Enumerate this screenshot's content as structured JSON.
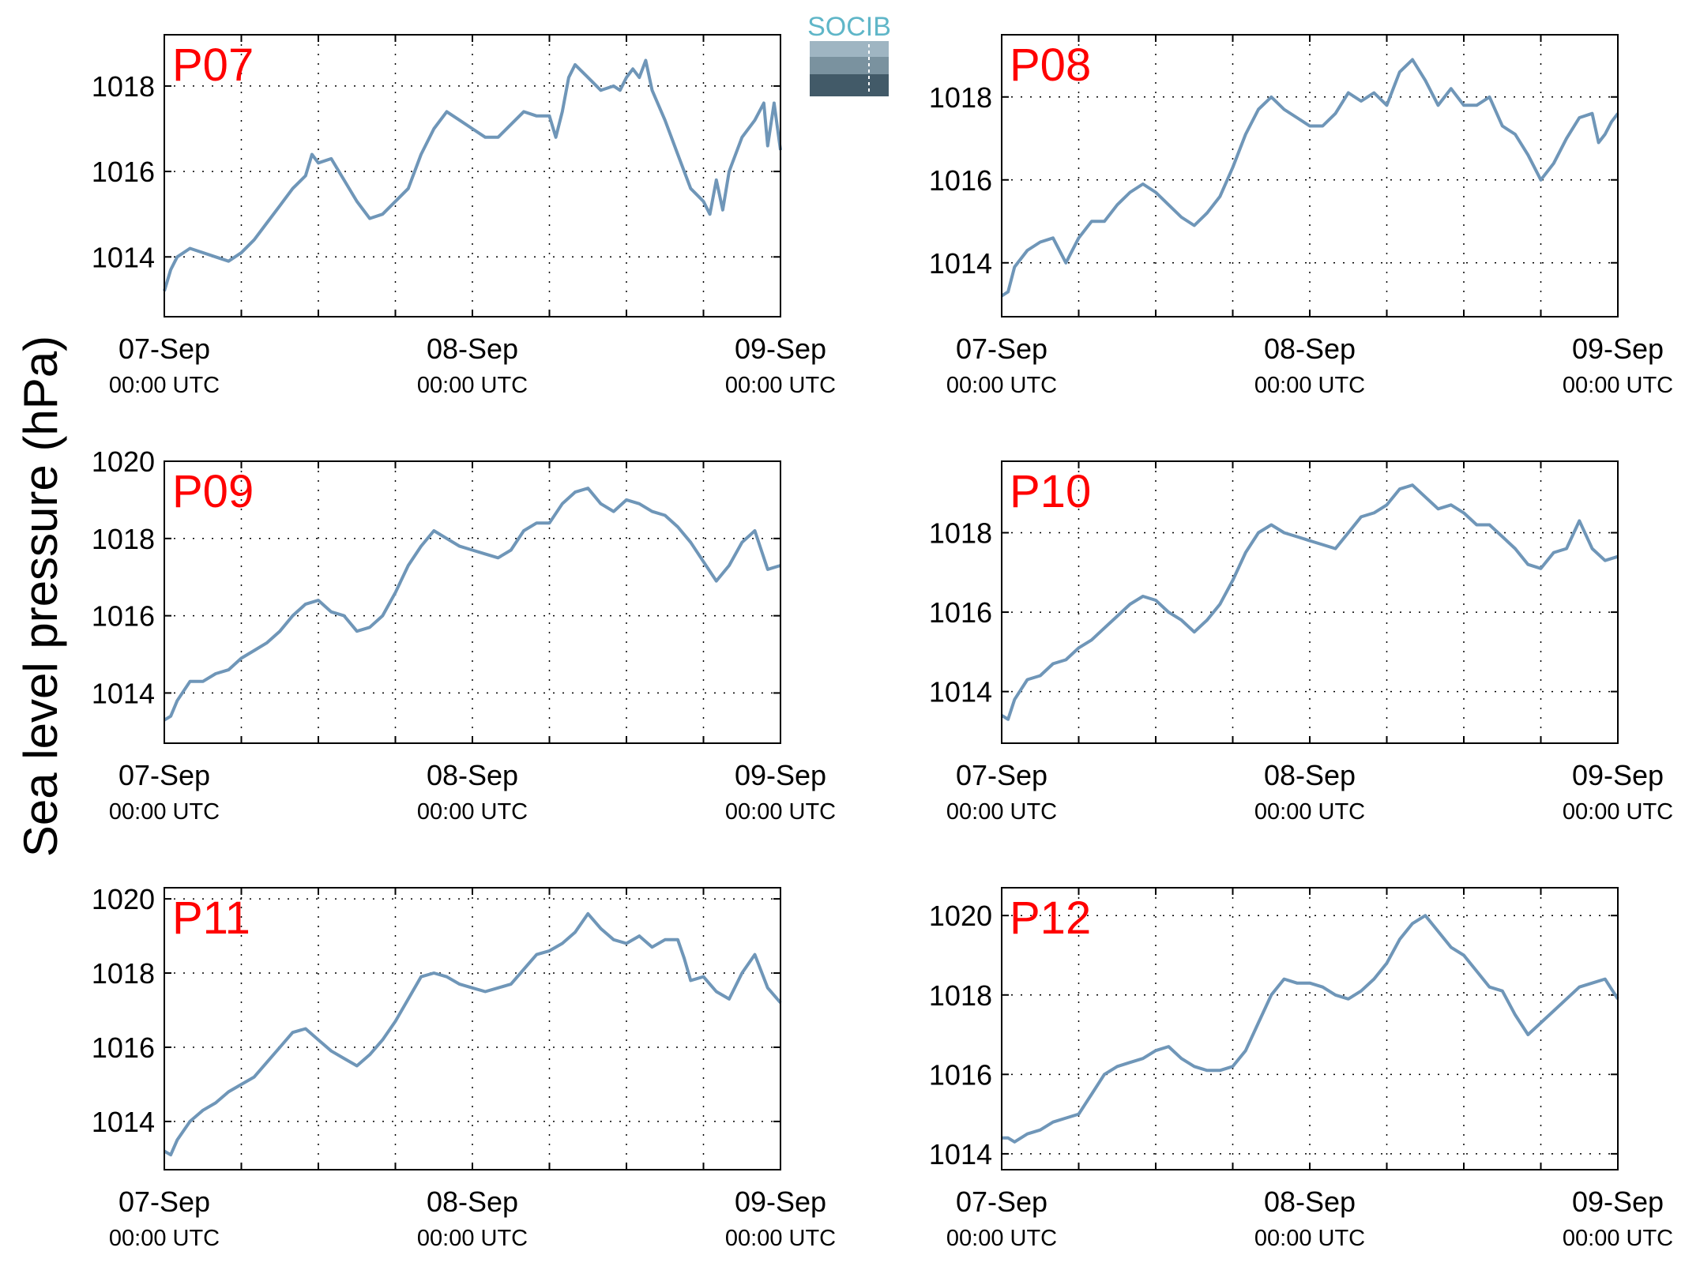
{
  "figure": {
    "ylabel": "Sea level pressure (hPa)",
    "logo_text": "SOCIB",
    "line_color": "#6f96b8",
    "label_color": "#ff0000"
  },
  "chart_data": [
    {
      "type": "line",
      "panel_label": "P07",
      "xlabel": "",
      "ylabel": "Sea level pressure (hPa)",
      "xlim": [
        0,
        48
      ],
      "ylim": [
        1012.6,
        1019.2
      ],
      "yticks": [
        1014,
        1016,
        1018
      ],
      "xticks": [
        0,
        24,
        48
      ],
      "xtick_labels": [
        [
          "07-Sep",
          "00:00 UTC"
        ],
        [
          "08-Sep",
          "00:00 UTC"
        ],
        [
          "09-Sep",
          "00:00 UTC"
        ]
      ],
      "grid": true,
      "series": [
        {
          "x": [
            0,
            0.5,
            1,
            2,
            3,
            4,
            5,
            6,
            7,
            8,
            9,
            10,
            11,
            11.5,
            12,
            13,
            14,
            15,
            16,
            17,
            18,
            19,
            20,
            21,
            22,
            23,
            24,
            25,
            26,
            27,
            28,
            29,
            30,
            30.5,
            31,
            31.5,
            32,
            33,
            34,
            35,
            35.5,
            36,
            36.5,
            37,
            37.5,
            38,
            39,
            40,
            41,
            42,
            42.5,
            43,
            43.5,
            44,
            45,
            46,
            46.7,
            47,
            47.5,
            48
          ],
          "y": [
            1013.2,
            1013.7,
            1014.0,
            1014.2,
            1014.1,
            1014.0,
            1013.9,
            1014.1,
            1014.4,
            1014.8,
            1015.2,
            1015.6,
            1015.9,
            1016.4,
            1016.2,
            1016.3,
            1015.8,
            1015.3,
            1014.9,
            1015.0,
            1015.3,
            1015.6,
            1016.4,
            1017.0,
            1017.4,
            1017.2,
            1017.0,
            1016.8,
            1016.8,
            1017.1,
            1017.4,
            1017.3,
            1017.3,
            1016.8,
            1017.4,
            1018.2,
            1018.5,
            1018.2,
            1017.9,
            1018.0,
            1017.9,
            1018.2,
            1018.4,
            1018.2,
            1018.6,
            1017.9,
            1017.2,
            1016.4,
            1015.6,
            1015.3,
            1015.0,
            1015.8,
            1015.1,
            1016.0,
            1016.8,
            1017.2,
            1017.6,
            1016.6,
            1017.6,
            1016.5
          ]
        }
      ]
    },
    {
      "type": "line",
      "panel_label": "P08",
      "xlabel": "",
      "ylabel": "",
      "xlim": [
        0,
        48
      ],
      "ylim": [
        1012.7,
        1019.5
      ],
      "yticks": [
        1014,
        1016,
        1018
      ],
      "xticks": [
        0,
        24,
        48
      ],
      "xtick_labels": [
        [
          "07-Sep",
          "00:00 UTC"
        ],
        [
          "08-Sep",
          "00:00 UTC"
        ],
        [
          "09-Sep",
          "00:00 UTC"
        ]
      ],
      "grid": true,
      "series": [
        {
          "x": [
            0,
            0.5,
            1,
            2,
            3,
            4,
            5,
            6,
            7,
            8,
            9,
            10,
            11,
            12,
            13,
            14,
            15,
            16,
            17,
            18,
            19,
            20,
            21,
            22,
            23,
            24,
            25,
            26,
            27,
            28,
            29,
            30,
            31,
            32,
            33,
            34,
            35,
            36,
            37,
            38,
            39,
            40,
            41,
            42,
            43,
            44,
            45,
            46,
            46.5,
            47,
            47.5,
            48
          ],
          "y": [
            1013.2,
            1013.3,
            1013.9,
            1014.3,
            1014.5,
            1014.6,
            1014.0,
            1014.6,
            1015.0,
            1015.0,
            1015.4,
            1015.7,
            1015.9,
            1015.7,
            1015.4,
            1015.1,
            1014.9,
            1015.2,
            1015.6,
            1016.3,
            1017.1,
            1017.7,
            1018.0,
            1017.7,
            1017.5,
            1017.3,
            1017.3,
            1017.6,
            1018.1,
            1017.9,
            1018.1,
            1017.8,
            1018.6,
            1018.9,
            1018.4,
            1017.8,
            1018.2,
            1017.8,
            1017.8,
            1018.0,
            1017.3,
            1017.1,
            1016.6,
            1016.0,
            1016.4,
            1017.0,
            1017.5,
            1017.6,
            1016.9,
            1017.1,
            1017.4,
            1017.6
          ]
        }
      ]
    },
    {
      "type": "line",
      "panel_label": "P09",
      "xlabel": "",
      "ylabel": "",
      "xlim": [
        0,
        48
      ],
      "ylim": [
        1012.7,
        1020.0
      ],
      "yticks": [
        1014,
        1016,
        1018,
        1020
      ],
      "xticks": [
        0,
        24,
        48
      ],
      "xtick_labels": [
        [
          "07-Sep",
          "00:00 UTC"
        ],
        [
          "08-Sep",
          "00:00 UTC"
        ],
        [
          "09-Sep",
          "00:00 UTC"
        ]
      ],
      "grid": true,
      "series": [
        {
          "x": [
            0,
            0.5,
            1,
            2,
            3,
            4,
            5,
            6,
            7,
            8,
            9,
            10,
            11,
            12,
            13,
            14,
            15,
            16,
            17,
            18,
            19,
            20,
            21,
            22,
            23,
            24,
            25,
            26,
            27,
            28,
            29,
            30,
            31,
            32,
            33,
            34,
            35,
            36,
            37,
            38,
            39,
            40,
            41,
            42,
            43,
            44,
            45,
            46,
            47,
            48
          ],
          "y": [
            1013.3,
            1013.4,
            1013.8,
            1014.3,
            1014.3,
            1014.5,
            1014.6,
            1014.9,
            1015.1,
            1015.3,
            1015.6,
            1016.0,
            1016.3,
            1016.4,
            1016.1,
            1016.0,
            1015.6,
            1015.7,
            1016.0,
            1016.6,
            1017.3,
            1017.8,
            1018.2,
            1018.0,
            1017.8,
            1017.7,
            1017.6,
            1017.5,
            1017.7,
            1018.2,
            1018.4,
            1018.4,
            1018.9,
            1019.2,
            1019.3,
            1018.9,
            1018.7,
            1019.0,
            1018.9,
            1018.7,
            1018.6,
            1018.3,
            1017.9,
            1017.4,
            1016.9,
            1017.3,
            1017.9,
            1018.2,
            1017.2,
            1017.3
          ]
        }
      ]
    },
    {
      "type": "line",
      "panel_label": "P10",
      "xlabel": "",
      "ylabel": "",
      "xlim": [
        0,
        48
      ],
      "ylim": [
        1012.7,
        1019.8
      ],
      "yticks": [
        1014,
        1016,
        1018
      ],
      "xticks": [
        0,
        24,
        48
      ],
      "xtick_labels": [
        [
          "07-Sep",
          "00:00 UTC"
        ],
        [
          "08-Sep",
          "00:00 UTC"
        ],
        [
          "09-Sep",
          "00:00 UTC"
        ]
      ],
      "grid": true,
      "series": [
        {
          "x": [
            0,
            0.5,
            1,
            2,
            3,
            4,
            5,
            6,
            7,
            8,
            9,
            10,
            11,
            12,
            13,
            14,
            15,
            16,
            17,
            18,
            19,
            20,
            21,
            22,
            23,
            24,
            25,
            26,
            27,
            28,
            29,
            30,
            31,
            32,
            33,
            34,
            35,
            36,
            37,
            38,
            39,
            40,
            41,
            42,
            43,
            44,
            45,
            46,
            47,
            48
          ],
          "y": [
            1013.4,
            1013.3,
            1013.8,
            1014.3,
            1014.4,
            1014.7,
            1014.8,
            1015.1,
            1015.3,
            1015.6,
            1015.9,
            1016.2,
            1016.4,
            1016.3,
            1016.0,
            1015.8,
            1015.5,
            1015.8,
            1016.2,
            1016.8,
            1017.5,
            1018.0,
            1018.2,
            1018.0,
            1017.9,
            1017.8,
            1017.7,
            1017.6,
            1018.0,
            1018.4,
            1018.5,
            1018.7,
            1019.1,
            1019.2,
            1018.9,
            1018.6,
            1018.7,
            1018.5,
            1018.2,
            1018.2,
            1017.9,
            1017.6,
            1017.2,
            1017.1,
            1017.5,
            1017.6,
            1018.3,
            1017.6,
            1017.3,
            1017.4
          ]
        }
      ]
    },
    {
      "type": "line",
      "panel_label": "P11",
      "xlabel": "",
      "ylabel": "",
      "xlim": [
        0,
        48
      ],
      "ylim": [
        1012.7,
        1020.3
      ],
      "yticks": [
        1014,
        1016,
        1018,
        1020
      ],
      "xticks": [
        0,
        24,
        48
      ],
      "xtick_labels": [
        [
          "07-Sep",
          "00:00 UTC"
        ],
        [
          "08-Sep",
          "00:00 UTC"
        ],
        [
          "09-Sep",
          "00:00 UTC"
        ]
      ],
      "grid": true,
      "series": [
        {
          "x": [
            0,
            0.5,
            1,
            2,
            3,
            4,
            5,
            6,
            7,
            8,
            9,
            10,
            11,
            12,
            13,
            14,
            15,
            16,
            17,
            18,
            19,
            20,
            21,
            22,
            23,
            24,
            25,
            26,
            27,
            28,
            29,
            30,
            31,
            32,
            33,
            34,
            35,
            36,
            37,
            38,
            39,
            40,
            40.5,
            41,
            42,
            43,
            44,
            45,
            46,
            47,
            48
          ],
          "y": [
            1013.2,
            1013.1,
            1013.5,
            1014.0,
            1014.3,
            1014.5,
            1014.8,
            1015.0,
            1015.2,
            1015.6,
            1016.0,
            1016.4,
            1016.5,
            1016.2,
            1015.9,
            1015.7,
            1015.5,
            1015.8,
            1016.2,
            1016.7,
            1017.3,
            1017.9,
            1018.0,
            1017.9,
            1017.7,
            1017.6,
            1017.5,
            1017.6,
            1017.7,
            1018.1,
            1018.5,
            1018.6,
            1018.8,
            1019.1,
            1019.6,
            1019.2,
            1018.9,
            1018.8,
            1019.0,
            1018.7,
            1018.9,
            1018.9,
            1018.4,
            1017.8,
            1017.9,
            1017.5,
            1017.3,
            1018.0,
            1018.5,
            1017.6,
            1017.2
          ]
        }
      ]
    },
    {
      "type": "line",
      "panel_label": "P12",
      "xlabel": "",
      "ylabel": "",
      "xlim": [
        0,
        48
      ],
      "ylim": [
        1013.6,
        1020.7
      ],
      "yticks": [
        1014,
        1016,
        1018,
        1020
      ],
      "xticks": [
        0,
        24,
        48
      ],
      "xtick_labels": [
        [
          "07-Sep",
          "00:00 UTC"
        ],
        [
          "08-Sep",
          "00:00 UTC"
        ],
        [
          "09-Sep",
          "00:00 UTC"
        ]
      ],
      "grid": true,
      "series": [
        {
          "x": [
            0,
            0.5,
            1,
            2,
            3,
            4,
            5,
            6,
            7,
            8,
            9,
            10,
            11,
            12,
            13,
            14,
            15,
            16,
            17,
            18,
            19,
            20,
            21,
            22,
            23,
            24,
            25,
            26,
            27,
            28,
            29,
            30,
            31,
            32,
            33,
            34,
            35,
            36,
            37,
            38,
            39,
            40,
            41,
            42,
            43,
            44,
            45,
            46,
            47,
            48
          ],
          "y": [
            1014.4,
            1014.4,
            1014.3,
            1014.5,
            1014.6,
            1014.8,
            1014.9,
            1015.0,
            1015.5,
            1016.0,
            1016.2,
            1016.3,
            1016.4,
            1016.6,
            1016.7,
            1016.4,
            1016.2,
            1016.1,
            1016.1,
            1016.2,
            1016.6,
            1017.3,
            1018.0,
            1018.4,
            1018.3,
            1018.3,
            1018.2,
            1018.0,
            1017.9,
            1018.1,
            1018.4,
            1018.8,
            1019.4,
            1019.8,
            1020.0,
            1019.6,
            1019.2,
            1019.0,
            1018.6,
            1018.2,
            1018.1,
            1017.5,
            1017.0,
            1017.3,
            1017.6,
            1017.9,
            1018.2,
            1018.3,
            1018.4,
            1017.9
          ]
        }
      ]
    }
  ]
}
